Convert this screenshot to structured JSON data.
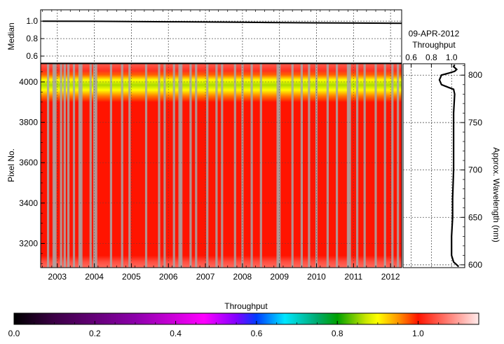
{
  "chart_data": [
    {
      "type": "line",
      "ylabel": "Median",
      "ylim": [
        0.52,
        1.13
      ],
      "yticks": [
        0.6,
        0.8,
        1.0
      ],
      "xlim": [
        2002.55,
        2012.3
      ],
      "grid": true,
      "series": [
        {
          "x": [
            2002.6,
            2004.0,
            2005.0,
            2006.0,
            2007.0,
            2008.0,
            2009.0,
            2010.0,
            2011.0,
            2012.3
          ],
          "y": [
            1.0,
            0.998,
            0.995,
            0.993,
            0.99,
            0.987,
            0.984,
            0.981,
            0.978,
            0.975
          ]
        }
      ]
    },
    {
      "type": "heatmap",
      "ylabel": "Pixel No.",
      "xticks": [
        "2003",
        "2004",
        "2005",
        "2006",
        "2007",
        "2008",
        "2009",
        "2010",
        "2011",
        "2012"
      ],
      "xlim": [
        2002.55,
        2012.3
      ],
      "ylim": [
        3080,
        4090
      ],
      "yticks": [
        3200,
        3400,
        3600,
        3800,
        4000
      ],
      "grid": true,
      "row_profile": [
        {
          "pixel": 3080,
          "throughput": 1.06
        },
        {
          "pixel": 3110,
          "throughput": 1.04
        },
        {
          "pixel": 3140,
          "throughput": 1.0
        },
        {
          "pixel": 3800,
          "throughput": 1.0
        },
        {
          "pixel": 3900,
          "throughput": 1.0
        },
        {
          "pixel": 3930,
          "throughput": 0.96
        },
        {
          "pixel": 3960,
          "throughput": 0.9
        },
        {
          "pixel": 3985,
          "throughput": 0.86
        },
        {
          "pixel": 4010,
          "throughput": 0.9
        },
        {
          "pixel": 4035,
          "throughput": 0.97
        },
        {
          "pixel": 4055,
          "throughput": 1.02
        },
        {
          "pixel": 4090,
          "throughput": 1.05
        }
      ],
      "data_gaps": [
        2002.75,
        2002.9,
        2002.95,
        2003.1,
        2003.2,
        2003.3,
        2003.45,
        2003.6,
        2003.65,
        2003.9,
        2004.0,
        2004.05,
        2004.45,
        2004.75,
        2004.95,
        2005.4,
        2005.75,
        2005.9,
        2006.15,
        2006.3,
        2006.35,
        2006.6,
        2006.75,
        2007.05,
        2007.3,
        2007.45,
        2007.8,
        2008.0,
        2008.25,
        2008.5,
        2008.95,
        2009.0,
        2009.35,
        2009.6,
        2009.8,
        2010.0,
        2010.3,
        2010.55,
        2010.85,
        2010.9,
        2011.1,
        2011.3,
        2011.6,
        2011.85,
        2012.05,
        2012.2
      ]
    },
    {
      "type": "line",
      "title": "09-APR-2012",
      "xlabel": "Throughput",
      "ylabel": "Approx. Wavelength (nm)",
      "xticks": [
        0.6,
        0.8,
        1.0
      ],
      "xlim": [
        0.52,
        1.13
      ],
      "ylim": [
        597,
        812
      ],
      "yticks": [
        600,
        650,
        700,
        750,
        800
      ],
      "grid": true,
      "series": [
        {
          "x": [
            1.07,
            1.05,
            1.02,
            1.0,
            1.0,
            1.01,
            1.01,
            1.02,
            1.02,
            1.02,
            1.03,
            1.02,
            0.97,
            0.9,
            0.88,
            0.9,
            0.97,
            1.03,
            1.05,
            1.02,
            1.03
          ],
          "y": [
            598,
            600,
            603,
            610,
            630,
            650,
            670,
            700,
            730,
            760,
            780,
            785,
            787,
            790,
            795,
            800,
            802,
            804,
            806,
            809,
            811
          ]
        }
      ]
    },
    {
      "type": "colorbar",
      "label": "Throughput",
      "range": [
        0.0,
        1.15
      ],
      "ticks": [
        "0.0",
        "0.2",
        "0.4",
        "0.6",
        "0.8",
        "1.0"
      ]
    }
  ],
  "colors": {
    "heat_base": "#ff2a16",
    "heat_band": "#ffee33",
    "gap": "#a8a8a8",
    "line": "#000000"
  }
}
